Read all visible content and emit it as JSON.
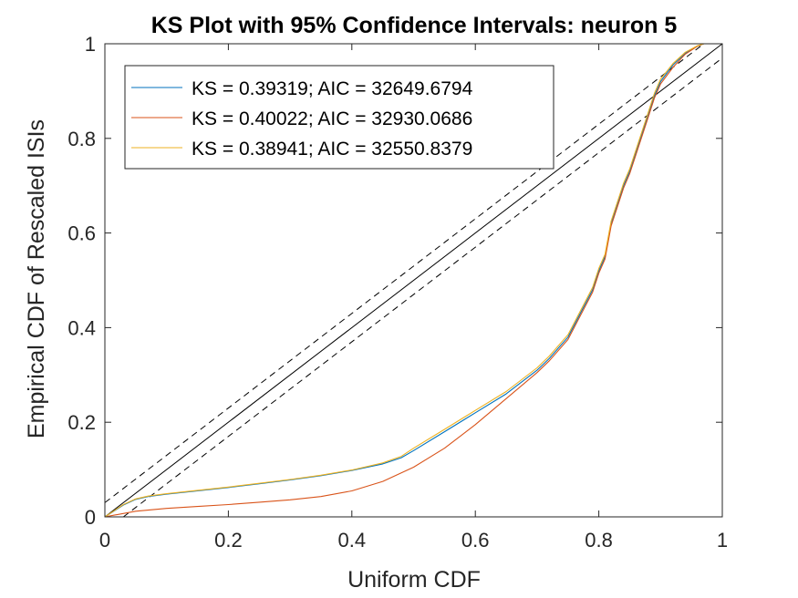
{
  "chart_data": {
    "type": "line",
    "title": "KS Plot with 95% Confidence Intervals: neuron 5",
    "xlabel": "Uniform CDF",
    "ylabel": "Empirical CDF of Rescaled ISIs",
    "xlim": [
      0,
      1
    ],
    "ylim": [
      0,
      1
    ],
    "x_ticks": [
      0,
      0.2,
      0.4,
      0.6,
      0.8,
      1
    ],
    "x_tick_labels": [
      "0",
      "0.2",
      "0.4",
      "0.6",
      "0.8",
      "1"
    ],
    "y_ticks": [
      0,
      0.2,
      0.4,
      0.6,
      0.8,
      1
    ],
    "y_tick_labels": [
      "0",
      "0.2",
      "0.4",
      "0.6",
      "0.8",
      "1"
    ],
    "grid": false,
    "legend_position": "top-left",
    "series": [
      {
        "name": "KS = 0.39319; AIC = 32649.6794",
        "color": "#0072bd",
        "x": [
          0,
          0.03,
          0.05,
          0.07,
          0.1,
          0.15,
          0.2,
          0.25,
          0.3,
          0.35,
          0.4,
          0.45,
          0.48,
          0.5,
          0.55,
          0.6,
          0.65,
          0.7,
          0.72,
          0.75,
          0.77,
          0.79,
          0.8,
          0.81,
          0.82,
          0.83,
          0.84,
          0.85,
          0.86,
          0.87,
          0.88,
          0.89,
          0.9,
          0.92,
          0.94,
          0.96,
          0.97,
          0.98,
          1
        ],
        "y": [
          0,
          0.025,
          0.037,
          0.043,
          0.048,
          0.055,
          0.062,
          0.07,
          0.078,
          0.087,
          0.098,
          0.112,
          0.125,
          0.14,
          0.18,
          0.22,
          0.26,
          0.31,
          0.335,
          0.38,
          0.43,
          0.48,
          0.52,
          0.55,
          0.62,
          0.66,
          0.7,
          0.73,
          0.77,
          0.81,
          0.85,
          0.89,
          0.92,
          0.955,
          0.98,
          0.995,
          1,
          1,
          1
        ]
      },
      {
        "name": "KS = 0.40022; AIC = 32930.0686",
        "color": "#d95319",
        "x": [
          0,
          0.05,
          0.1,
          0.15,
          0.2,
          0.25,
          0.3,
          0.35,
          0.4,
          0.45,
          0.5,
          0.55,
          0.6,
          0.65,
          0.7,
          0.72,
          0.75,
          0.77,
          0.79,
          0.8,
          0.81,
          0.82,
          0.83,
          0.84,
          0.85,
          0.86,
          0.87,
          0.88,
          0.89,
          0.9,
          0.92,
          0.94,
          0.96,
          0.97,
          0.98,
          1
        ],
        "y": [
          0,
          0.012,
          0.018,
          0.022,
          0.026,
          0.031,
          0.036,
          0.043,
          0.055,
          0.075,
          0.105,
          0.145,
          0.195,
          0.25,
          0.305,
          0.33,
          0.375,
          0.425,
          0.475,
          0.515,
          0.545,
          0.615,
          0.655,
          0.695,
          0.725,
          0.765,
          0.805,
          0.845,
          0.885,
          0.915,
          0.95,
          0.978,
          0.995,
          1,
          1,
          1
        ]
      },
      {
        "name": "KS = 0.38941; AIC = 32550.8379",
        "color": "#edb120",
        "x": [
          0,
          0.03,
          0.05,
          0.07,
          0.1,
          0.15,
          0.2,
          0.25,
          0.3,
          0.35,
          0.4,
          0.45,
          0.48,
          0.5,
          0.55,
          0.6,
          0.65,
          0.7,
          0.72,
          0.75,
          0.77,
          0.79,
          0.8,
          0.81,
          0.82,
          0.83,
          0.84,
          0.85,
          0.86,
          0.87,
          0.88,
          0.89,
          0.9,
          0.92,
          0.94,
          0.96,
          0.97,
          0.98,
          1
        ],
        "y": [
          0,
          0.026,
          0.038,
          0.044,
          0.049,
          0.056,
          0.063,
          0.071,
          0.079,
          0.088,
          0.099,
          0.114,
          0.128,
          0.145,
          0.185,
          0.225,
          0.265,
          0.315,
          0.34,
          0.385,
          0.435,
          0.485,
          0.525,
          0.555,
          0.625,
          0.665,
          0.705,
          0.735,
          0.775,
          0.815,
          0.855,
          0.895,
          0.925,
          0.958,
          0.982,
          0.996,
          1,
          1,
          1
        ]
      }
    ],
    "reference_lines": [
      {
        "role": "diagonal",
        "style": "solid",
        "color": "#000000",
        "x": [
          0,
          1
        ],
        "y": [
          0,
          1
        ]
      },
      {
        "role": "upper-95%-bound",
        "style": "dashed",
        "color": "#000000",
        "x": [
          0,
          0.97
        ],
        "y": [
          0.03,
          1
        ]
      },
      {
        "role": "lower-95%-bound",
        "style": "dashed",
        "color": "#000000",
        "x": [
          0.03,
          1
        ],
        "y": [
          0,
          0.97
        ]
      }
    ]
  }
}
